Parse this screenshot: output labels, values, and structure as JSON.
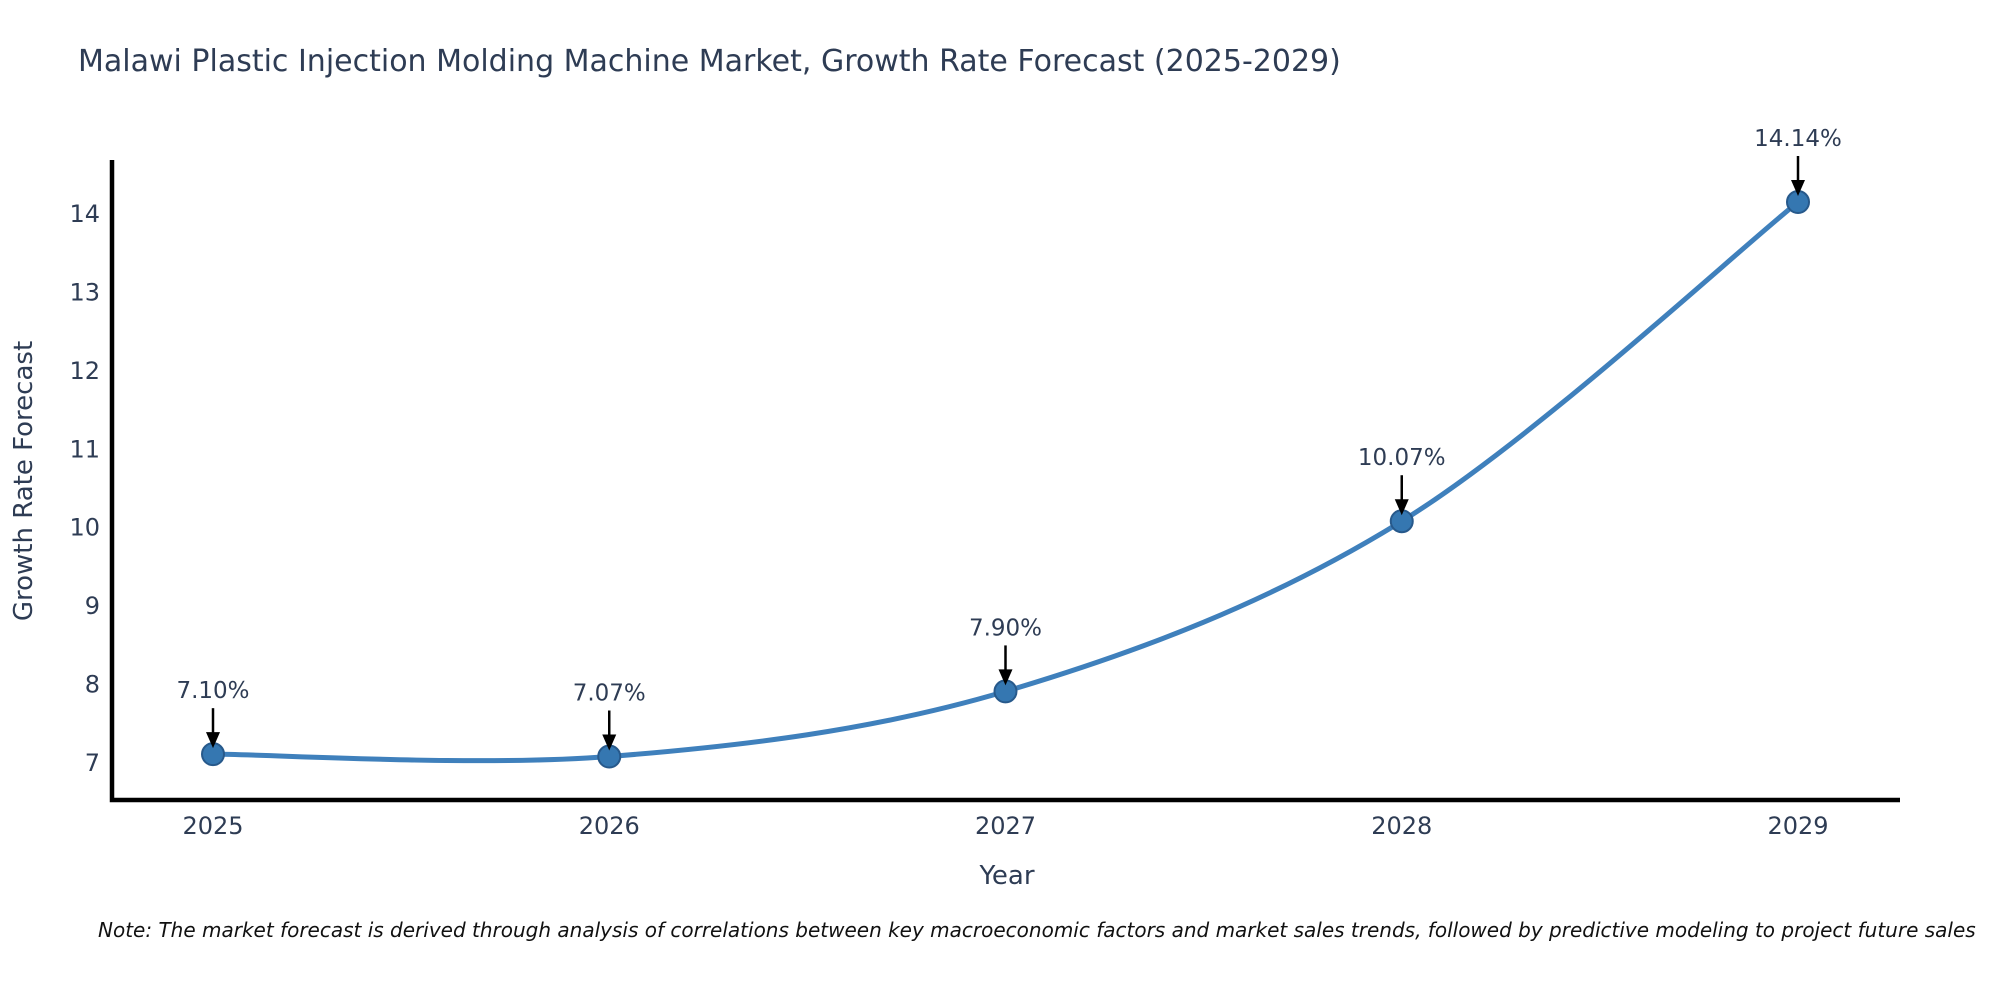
{
  "title": "Malawi Plastic Injection Molding Machine Market, Growth Rate Forecast (2025-2029)",
  "chart_data": {
    "type": "line",
    "categories": [
      "2025",
      "2026",
      "2027",
      "2028",
      "2029"
    ],
    "values": [
      7.1,
      7.07,
      7.9,
      10.07,
      14.14
    ],
    "point_labels": [
      "7.10%",
      "7.07%",
      "7.90%",
      "10.07%",
      "14.14%"
    ],
    "title": "Malawi Plastic Injection Molding Machine Market, Growth Rate Forecast (2025-2029)",
    "xlabel": "Year",
    "ylabel": "Growth Rate Forecast",
    "yticks": [
      7,
      8,
      9,
      10,
      11,
      12,
      13,
      14
    ],
    "ylim": [
      6.52,
      14.68
    ],
    "grid": false,
    "legend": "none",
    "marker_shape": "circle",
    "annotation_arrows": "black-down-arrows",
    "colors": {
      "line": "#3f80bc",
      "marker_fill": "#3577b1",
      "marker_edge": "#27598b",
      "axis": "#000000",
      "tick_text": "#2e3c54",
      "title_text": "#2e3c54",
      "annotation_text": "#2e3c54",
      "annotation_arrow": "#000000",
      "background": "#ffffff"
    }
  },
  "note": "Note: The market forecast is derived through analysis of correlations between key macroeconomic factors and market sales trends, followed by predictive modeling to project future sales"
}
